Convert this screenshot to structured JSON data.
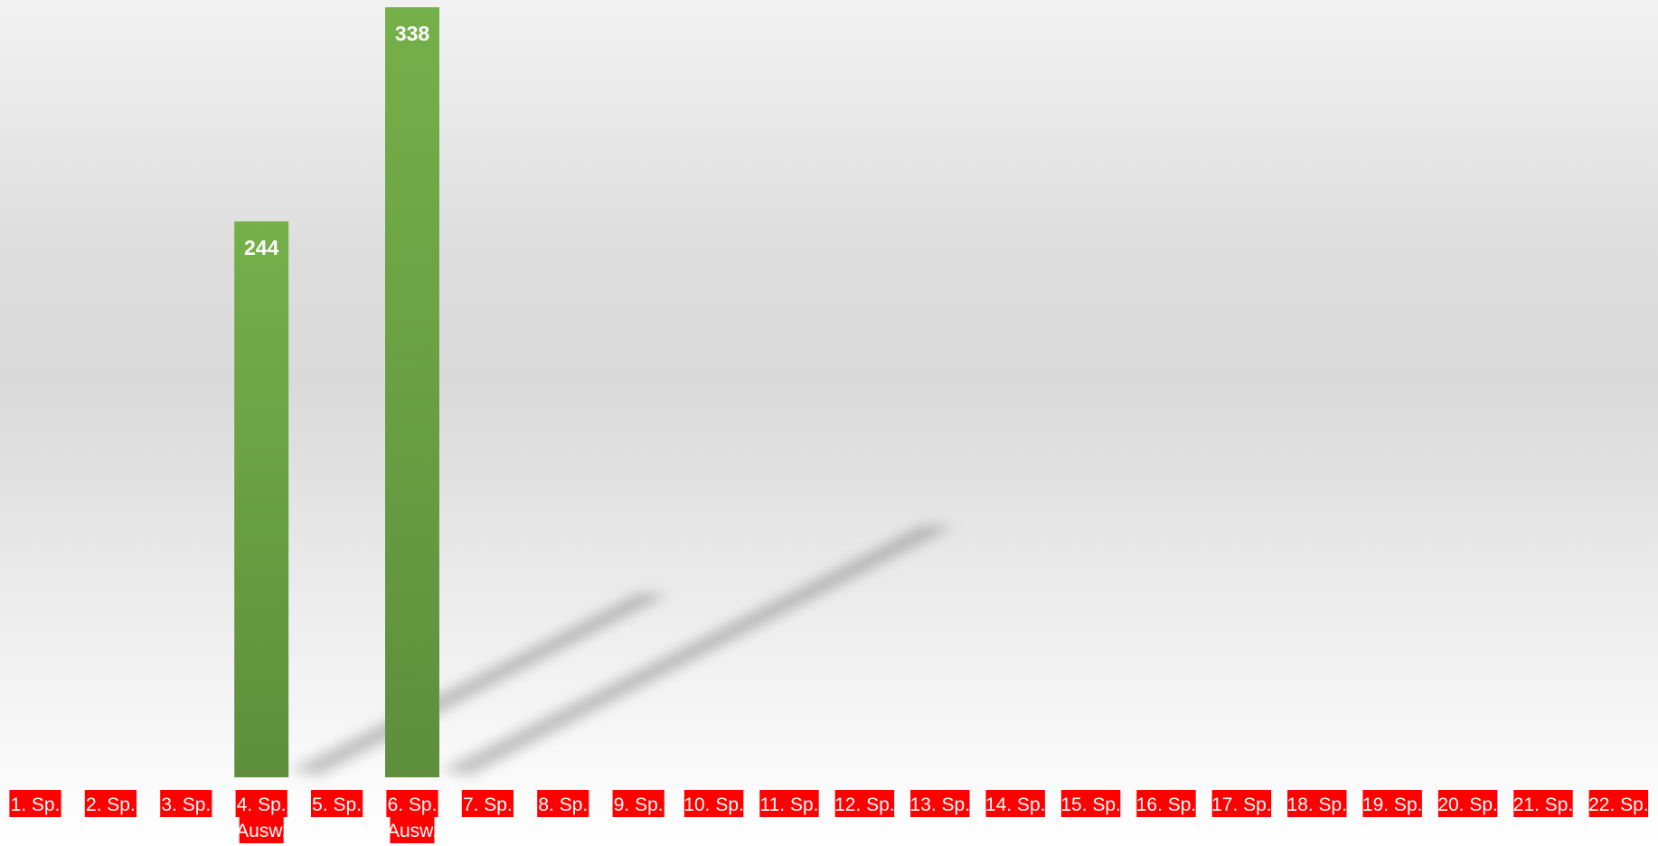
{
  "chart_data": {
    "type": "bar",
    "title": "",
    "xlabel": "",
    "ylabel": "",
    "categories": [
      [
        "1. Sp."
      ],
      [
        "2. Sp."
      ],
      [
        "3. Sp."
      ],
      [
        "4. Sp.",
        "Ausw."
      ],
      [
        "5. Sp."
      ],
      [
        "6. Sp.",
        "Ausw."
      ],
      [
        "7. Sp."
      ],
      [
        "8. Sp."
      ],
      [
        "9. Sp."
      ],
      [
        "10. Sp."
      ],
      [
        "11. Sp."
      ],
      [
        "12. Sp."
      ],
      [
        "13. Sp."
      ],
      [
        "14. Sp."
      ],
      [
        "15. Sp."
      ],
      [
        "16. Sp."
      ],
      [
        "17. Sp."
      ],
      [
        "18. Sp."
      ],
      [
        "19. Sp."
      ],
      [
        "20. Sp."
      ],
      [
        "21. Sp."
      ],
      [
        "22. Sp."
      ]
    ],
    "values": [
      null,
      null,
      null,
      244,
      null,
      338,
      null,
      null,
      null,
      null,
      null,
      null,
      null,
      null,
      null,
      null,
      null,
      null,
      null,
      null,
      null,
      null
    ],
    "ylim": [
      0,
      338
    ],
    "grid": false,
    "legend": "none",
    "colors": {
      "bar_top": "#75b04a",
      "bar_bottom": "#5e8f3c",
      "label_bg": "#ff0000",
      "label_text": "#ffffff",
      "value_text": "#ffffff"
    }
  }
}
